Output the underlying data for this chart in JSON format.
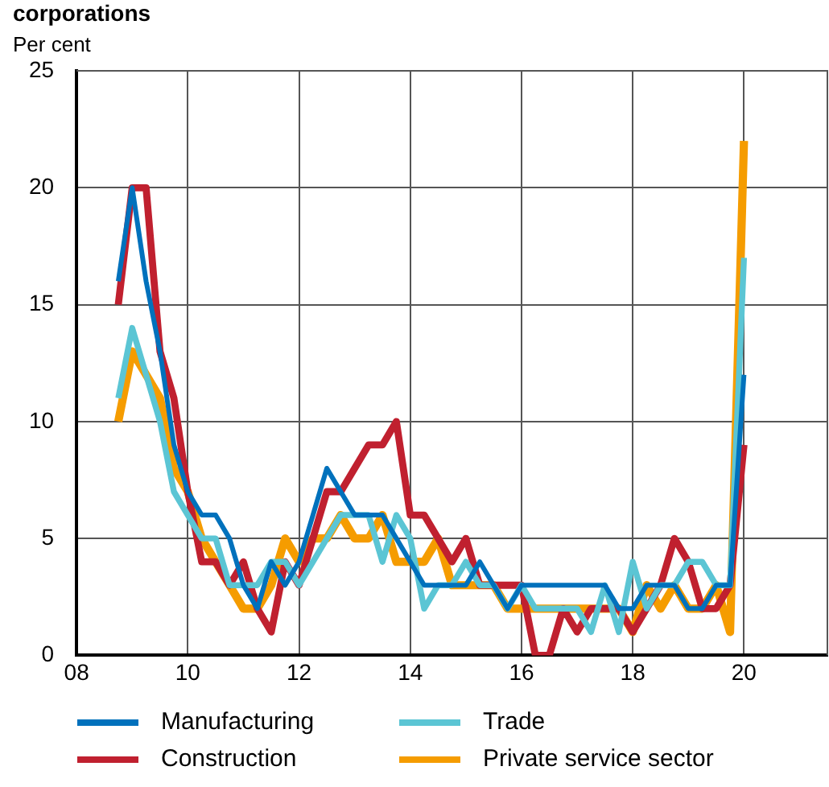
{
  "chart_data": {
    "type": "line",
    "title": "corporations",
    "ylabel": "Per cent",
    "x": [
      2008.75,
      2009,
      2009.25,
      2009.5,
      2009.75,
      2010,
      2010.25,
      2010.5,
      2010.75,
      2011,
      2011.25,
      2011.5,
      2011.75,
      2012,
      2012.25,
      2012.5,
      2012.75,
      2013,
      2013.25,
      2013.5,
      2013.75,
      2014,
      2014.25,
      2014.5,
      2014.75,
      2015,
      2015.25,
      2015.5,
      2015.75,
      2016,
      2016.25,
      2016.5,
      2016.75,
      2017,
      2017.25,
      2017.5,
      2017.75,
      2018,
      2018.25,
      2018.5,
      2018.75,
      2019,
      2019.25,
      2019.5,
      2019.75,
      2020
    ],
    "series": [
      {
        "name": "Manufacturing",
        "color": "#0071bc",
        "values": [
          16,
          20,
          16,
          13,
          9,
          7,
          6,
          6,
          5,
          3,
          2,
          4,
          3,
          4,
          6,
          8,
          7,
          6,
          6,
          6,
          5,
          4,
          3,
          3,
          3,
          3,
          4,
          3,
          2,
          3,
          3,
          3,
          3,
          3,
          3,
          3,
          2,
          2,
          3,
          3,
          3,
          2,
          2,
          3,
          3,
          12
        ]
      },
      {
        "name": "Trade",
        "color": "#5bc5d4",
        "values": [
          11,
          14,
          12,
          10,
          7,
          6,
          5,
          5,
          3,
          3,
          3,
          4,
          4,
          3,
          4,
          5,
          6,
          6,
          6,
          4,
          6,
          5,
          2,
          3,
          3,
          4,
          3,
          3,
          2,
          3,
          2,
          2,
          2,
          2,
          1,
          3,
          1,
          4,
          2,
          3,
          3,
          4,
          4,
          3,
          3,
          17
        ]
      },
      {
        "name": "Construction",
        "color": "#c0202f",
        "values": [
          15,
          20,
          20,
          13,
          11,
          7,
          4,
          4,
          3,
          4,
          2,
          1,
          4,
          3,
          5,
          7,
          7,
          8,
          9,
          9,
          10,
          6,
          6,
          5,
          4,
          5,
          3,
          3,
          3,
          3,
          0,
          0,
          2,
          1,
          2,
          2,
          2,
          1,
          2,
          3,
          5,
          4,
          2,
          2,
          3,
          9
        ]
      },
      {
        "name": "Private service sector",
        "color": "#f59c00",
        "values": [
          10,
          13,
          12,
          11,
          8,
          7,
          5,
          4,
          3,
          2,
          2,
          3,
          5,
          4,
          5,
          5,
          6,
          5,
          5,
          6,
          4,
          4,
          4,
          5,
          3,
          3,
          3,
          3,
          2,
          2,
          2,
          2,
          2,
          2,
          2,
          2,
          2,
          1,
          3,
          2,
          3,
          2,
          2,
          3,
          1,
          22
        ]
      }
    ],
    "xlim": [
      2008,
      2021.5
    ],
    "xticks": [
      {
        "value": 2008,
        "label": "08"
      },
      {
        "value": 2010,
        "label": "10"
      },
      {
        "value": 2012,
        "label": "12"
      },
      {
        "value": 2014,
        "label": "14"
      },
      {
        "value": 2016,
        "label": "16"
      },
      {
        "value": 2018,
        "label": "18"
      },
      {
        "value": 2020,
        "label": "20"
      }
    ],
    "ylim": [
      0,
      25
    ],
    "yticks": [
      0,
      5,
      10,
      15,
      20,
      25
    ],
    "grid": true,
    "legend": "bottom",
    "marker": "none",
    "line_style": "solid"
  }
}
